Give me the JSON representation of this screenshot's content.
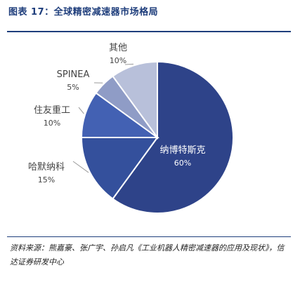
{
  "title": "图表 17：全球精密减速器市场格局",
  "source": "资料来源：熊嘉豪、张广宇、孙启凡《工业机器人精密减速器的应用及现状》，信达证券研发中心",
  "chart_data": {
    "type": "pie",
    "title": "",
    "slices": [
      {
        "label": "纳博特斯克",
        "value": 60,
        "value_label": "60%",
        "color": "#2e4389"
      },
      {
        "label": "哈默纳科",
        "value": 15,
        "value_label": "15%",
        "color": "#34509c"
      },
      {
        "label": "住友重工",
        "value": 10,
        "value_label": "10%",
        "color": "#4361b3"
      },
      {
        "label": "SPINEA",
        "value": 5,
        "value_label": "5%",
        "color": "#8f9cc6"
      },
      {
        "label": "其他",
        "value": 10,
        "value_label": "10%",
        "color": "#b8c0da"
      }
    ],
    "start_angle": "12 o'clock",
    "direction": "clockwise",
    "legend": "none"
  }
}
